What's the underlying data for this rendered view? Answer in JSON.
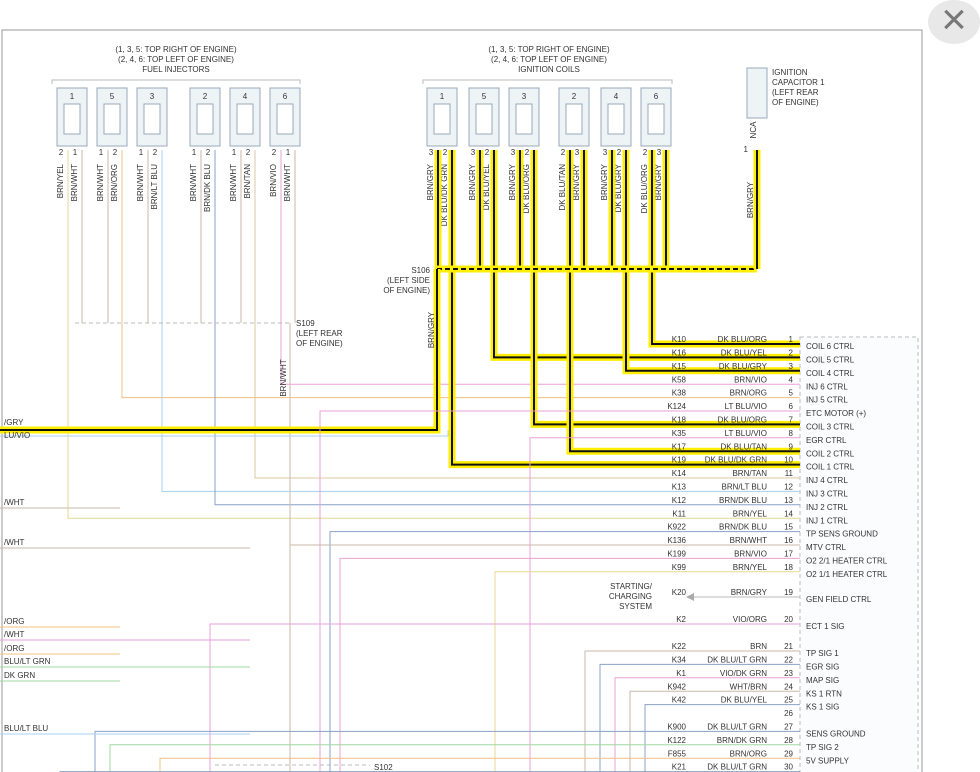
{
  "close_button": "×",
  "injectors": {
    "header": [
      "(1, 3, 5: TOP RIGHT OF ENGINE)",
      "(2, 4, 6: TOP LEFT OF ENGINE)",
      "FUEL INJECTORS"
    ],
    "items": [
      {
        "number": "1",
        "wires": [
          {
            "pin": "2",
            "color": "BRN/YEL"
          },
          {
            "pin": "1",
            "color": "BRN/WHT"
          }
        ]
      },
      {
        "number": "5",
        "wires": [
          {
            "pin": "1",
            "color": "BRN/WHT"
          },
          {
            "pin": "2",
            "color": "BRN/ORG"
          }
        ]
      },
      {
        "number": "3",
        "wires": [
          {
            "pin": "1",
            "color": "BRN/WHT"
          },
          {
            "pin": "2",
            "color": "BRN/LT BLU"
          }
        ]
      },
      {
        "number": "2",
        "wires": [
          {
            "pin": "1",
            "color": "BRN/WHT"
          },
          {
            "pin": "2",
            "color": "BRN/DK BLU"
          }
        ]
      },
      {
        "number": "4",
        "wires": [
          {
            "pin": "1",
            "color": "BRN/WHT"
          },
          {
            "pin": "2",
            "color": "BRN/TAN"
          }
        ]
      },
      {
        "number": "6",
        "wires": [
          {
            "pin": "2",
            "color": "BRN/VIO"
          },
          {
            "pin": "1",
            "color": "BRN/WHT"
          }
        ]
      }
    ]
  },
  "coils": {
    "header": [
      "(1, 3, 5: TOP RIGHT OF ENGINE)",
      "(2, 4, 6: TOP LEFT OF ENGINE)",
      "IGNITION COILS"
    ],
    "items": [
      {
        "number": "1",
        "wires": [
          {
            "pin": "3",
            "color": "BRN/GRY"
          },
          {
            "pin": "2",
            "color": "DK BLU/DK GRN"
          }
        ]
      },
      {
        "number": "5",
        "wires": [
          {
            "pin": "3",
            "color": "BRN/GRY"
          },
          {
            "pin": "2",
            "color": "DK BLU/YEL"
          }
        ]
      },
      {
        "number": "3",
        "wires": [
          {
            "pin": "3",
            "color": "BRN/GRY"
          },
          {
            "pin": "2",
            "color": "DK BLU/ORG"
          }
        ]
      },
      {
        "number": "2",
        "wires": [
          {
            "pin": "2",
            "color": "DK BLU/TAN"
          },
          {
            "pin": "3",
            "color": "BRN/GRY"
          }
        ]
      },
      {
        "number": "4",
        "wires": [
          {
            "pin": "3",
            "color": "BRN/GRY"
          },
          {
            "pin": "2",
            "color": "DK BLU/GRY"
          }
        ]
      },
      {
        "number": "6",
        "wires": [
          {
            "pin": "2",
            "color": "DK BLU/ORG"
          },
          {
            "pin": "3",
            "color": "BRN/GRY"
          }
        ]
      }
    ]
  },
  "capacitor": {
    "label": [
      "IGNITION",
      "CAPACITOR 1",
      "(LEFT REAR",
      "OF ENGINE)"
    ],
    "nca": "NCA",
    "pin": "1",
    "wire": "BRN/GRY"
  },
  "splices": {
    "s106": [
      "S106",
      "(LEFT SIDE",
      "OF ENGINE)"
    ],
    "s106_wire": "BRN/GRY",
    "s109": [
      "S109",
      "(LEFT REAR",
      "OF ENGINE)"
    ],
    "s109_wire": "BRN/WHT",
    "s102": "S102"
  },
  "left_labels": [
    "/GRY",
    "LU/VIO",
    "/WHT",
    "/WHT",
    "/ORG",
    "/WHT",
    "/ORG",
    "BLU/LT GRN",
    "DK GRN",
    "BLU/LT BLU"
  ],
  "pins": {
    "rows": [
      {
        "circuit": "K10",
        "color": "DK BLU/ORG",
        "pin": "1",
        "function": "COIL 6 CTRL"
      },
      {
        "circuit": "K16",
        "color": "DK BLU/YEL",
        "pin": "2",
        "function": "COIL 5 CTRL"
      },
      {
        "circuit": "K15",
        "color": "DK BLU/GRY",
        "pin": "3",
        "function": "COIL 4 CTRL"
      },
      {
        "circuit": "K58",
        "color": "BRN/VIO",
        "pin": "4",
        "function": "INJ 6 CTRL"
      },
      {
        "circuit": "K38",
        "color": "BRN/ORG",
        "pin": "5",
        "function": "INJ 5 CTRL"
      },
      {
        "circuit": "K124",
        "color": "LT BLU/VIO",
        "pin": "6",
        "function": "ETC MOTOR (+)"
      },
      {
        "circuit": "K18",
        "color": "DK BLU/ORG",
        "pin": "7",
        "function": "COIL 3 CTRL"
      },
      {
        "circuit": "K35",
        "color": "LT BLU/VIO",
        "pin": "8",
        "function": "EGR CTRL"
      },
      {
        "circuit": "K17",
        "color": "DK BLU/TAN",
        "pin": "9",
        "function": "COIL 2 CTRL"
      },
      {
        "circuit": "K19",
        "color": "DK BLU/DK GRN",
        "pin": "10",
        "function": "COIL 1 CTRL"
      },
      {
        "circuit": "K14",
        "color": "BRN/TAN",
        "pin": "11",
        "function": "INJ 4 CTRL"
      },
      {
        "circuit": "K13",
        "color": "BRN/LT BLU",
        "pin": "12",
        "function": "INJ 3 CTRL"
      },
      {
        "circuit": "K12",
        "color": "BRN/DK BLU",
        "pin": "13",
        "function": "INJ 2 CTRL"
      },
      {
        "circuit": "K11",
        "color": "BRN/YEL",
        "pin": "14",
        "function": "INJ 1 CTRL"
      },
      {
        "circuit": "K922",
        "color": "BRN/DK BLU",
        "pin": "15",
        "function": "TP SENS GROUND"
      },
      {
        "circuit": "K136",
        "color": "BRN/WHT",
        "pin": "16",
        "function": "MTV CTRL"
      },
      {
        "circuit": "K199",
        "color": "BRN/VIO",
        "pin": "17",
        "function": "O2 2/1 HEATER CTRL"
      },
      {
        "circuit": "K99",
        "color": "BRN/YEL",
        "pin": "18",
        "function": "O2 1/1 HEATER CTRL"
      },
      {
        "circuit": "K20",
        "color": "BRN/GRY",
        "pin": "19",
        "function": "GEN FIELD CTRL",
        "note": [
          "STARTING/",
          "CHARGING",
          "SYSTEM"
        ]
      },
      {
        "circuit": "K2",
        "color": "VIO/ORG",
        "pin": "20",
        "function": "ECT 1 SIG"
      },
      {
        "circuit": "K22",
        "color": "BRN",
        "pin": "21",
        "function": "TP SIG 1"
      },
      {
        "circuit": "K34",
        "color": "DK BLU/LT GRN",
        "pin": "22",
        "function": "EGR SIG"
      },
      {
        "circuit": "K1",
        "color": "VIO/DK GRN",
        "pin": "23",
        "function": "MAP SIG"
      },
      {
        "circuit": "K942",
        "color": "WHT/BRN",
        "pin": "24",
        "function": "KS 1 RTN"
      },
      {
        "circuit": "K42",
        "color": "DK BLU/YEL",
        "pin": "25",
        "function": "KS 1 SIG"
      },
      {
        "pin": "26"
      },
      {
        "circuit": "K900",
        "color": "DK BLU/LT GRN",
        "pin": "27",
        "function": "SENS GROUND"
      },
      {
        "circuit": "K122",
        "color": "BRN/DK GRN",
        "pin": "28",
        "function": "TP SIG 2"
      },
      {
        "circuit": "F855",
        "color": "BRN/ORG",
        "pin": "29",
        "function": "5V SUPPLY"
      },
      {
        "circuit": "K21",
        "color": "DK BLU/LT GRN",
        "pin": "30"
      }
    ]
  }
}
